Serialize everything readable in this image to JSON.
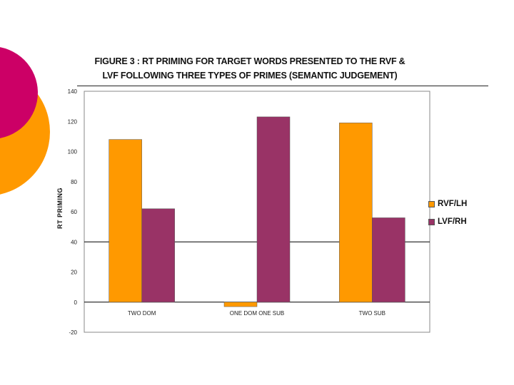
{
  "colors": {
    "deco_pink": "#cc0066",
    "deco_orange": "#ff9900",
    "rvf": "#ff9900",
    "lvf": "#993366"
  },
  "chart_data": {
    "type": "bar",
    "title_line1": "FIGURE 3 : RT PRIMING FOR TARGET WORDS PRESENTED TO THE RVF &",
    "title_line2": "LVF FOLLOWING THREE TYPES OF PRIMES (SEMANTIC JUDGEMENT)",
    "xlabel": "",
    "ylabel": "RT PRIMING",
    "categories": [
      "TWO DOM",
      "ONE DOM ONE SUB",
      "TWO SUB"
    ],
    "series": [
      {
        "name": "RVF/LH",
        "values": [
          108,
          -3,
          119
        ]
      },
      {
        "name": "LVF/RH",
        "values": [
          62,
          123,
          56
        ]
      }
    ],
    "ylim": [
      -20,
      140
    ],
    "yticks": [
      140,
      120,
      100,
      80,
      60,
      40,
      20,
      0,
      -20
    ],
    "gridlines": [
      40
    ],
    "legend_position": "right"
  }
}
